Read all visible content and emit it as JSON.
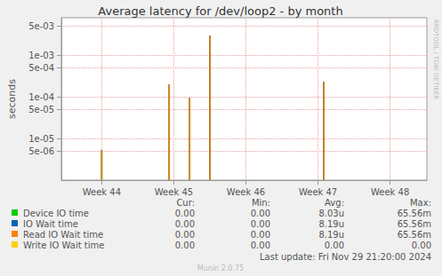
{
  "chart_data": {
    "type": "line",
    "title": "Average latency for /dev/loop2 - by month",
    "y_label": "seconds",
    "log": "y",
    "grid": true,
    "x": [
      44.0,
      44.93,
      45.22,
      45.5,
      47.08
    ],
    "xlim": [
      43.44,
      48.51
    ],
    "xticks": [
      {
        "value": 44,
        "label": "Week 44"
      },
      {
        "value": 45,
        "label": "Week 45"
      },
      {
        "value": 46,
        "label": "Week 46"
      },
      {
        "value": 47,
        "label": "Week 47"
      },
      {
        "value": 48,
        "label": "Week 48"
      }
    ],
    "ylim": [
      1e-06,
      0.008
    ],
    "yticks": [
      {
        "value": 5e-06,
        "label": "5e-06"
      },
      {
        "value": 1e-05,
        "label": "1e-05"
      },
      {
        "value": 5e-05,
        "label": "5e-05"
      },
      {
        "value": 0.0001,
        "label": "1e-04"
      },
      {
        "value": 0.0005,
        "label": "5e-04"
      },
      {
        "value": 0.001,
        "label": "1e-03"
      },
      {
        "value": 0.005,
        "label": "5e-03"
      }
    ],
    "stats_header": [
      "Cur:",
      "Min:",
      "Avg:",
      "Max:"
    ],
    "series": [
      {
        "name": "Device IO time",
        "color": "#00cc00",
        "values": [
          5.3e-06,
          0.0002,
          9.5e-05,
          0.003,
          0.00023
        ],
        "stats": [
          "0.00",
          "0.00",
          "8.03u",
          "65.56m"
        ]
      },
      {
        "name": "IO Wait time",
        "color": "#0066b3",
        "values": [
          5.3e-06,
          0.0002,
          9.5e-05,
          0.003,
          0.00023
        ],
        "stats": [
          "0.00",
          "0.00",
          "8.19u",
          "65.56m"
        ]
      },
      {
        "name": "Read IO Wait time",
        "color": "#ff8000",
        "values": [
          5.3e-06,
          0.0002,
          9.5e-05,
          0.003,
          0.00023
        ],
        "stats": [
          "0.00",
          "0.00",
          "8.19u",
          "65.56m"
        ]
      },
      {
        "name": "Write IO Wait time",
        "color": "#ffcc00",
        "values": [
          null,
          null,
          null,
          null,
          null
        ],
        "stats": [
          "0.00",
          "0.00",
          "0.00",
          "0.00"
        ]
      }
    ],
    "footer": "Last update: Fri Nov 29 21:20:00 2024",
    "credit": "Munin 2.0.75",
    "side_text": "RRDTOOL / TOBI OETIKER"
  }
}
